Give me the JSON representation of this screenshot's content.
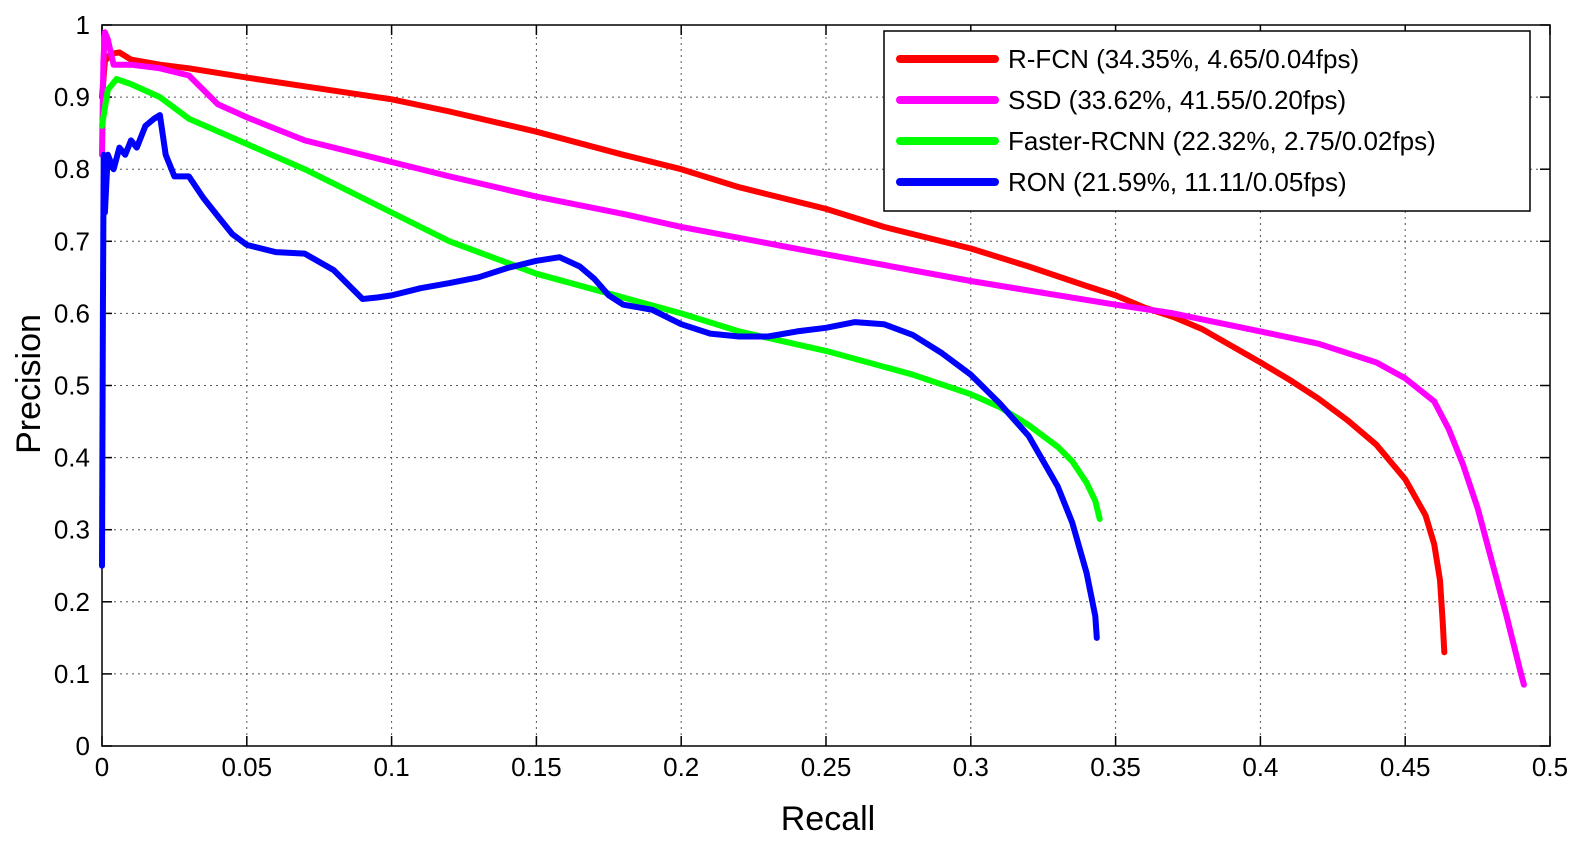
{
  "chart_data": {
    "type": "line",
    "title": "",
    "xlabel": "Recall",
    "ylabel": "Precision",
    "xlim": [
      0,
      0.5
    ],
    "ylim": [
      0,
      1
    ],
    "xticks": [
      0,
      0.05,
      0.1,
      0.15,
      0.2,
      0.25,
      0.3,
      0.35,
      0.4,
      0.45,
      0.5
    ],
    "xtick_labels": [
      "0",
      "0.05",
      "0.1",
      "0.15",
      "0.2",
      "0.25",
      "0.3",
      "0.35",
      "0.4",
      "0.45",
      "0.5"
    ],
    "yticks": [
      0,
      0.1,
      0.2,
      0.3,
      0.4,
      0.5,
      0.6,
      0.7,
      0.8,
      0.9,
      1
    ],
    "ytick_labels": [
      "0",
      "0.1",
      "0.2",
      "0.3",
      "0.4",
      "0.5",
      "0.6",
      "0.7",
      "0.8",
      "0.9",
      "1"
    ],
    "grid": true,
    "legend_position": "top-right",
    "series": [
      {
        "name": "R-FCN (34.35%, 4.65/0.04fps)",
        "color": "#ff0000",
        "points": [
          [
            0,
            0.9
          ],
          [
            0.001,
            0.95
          ],
          [
            0.003,
            0.96
          ],
          [
            0.006,
            0.962
          ],
          [
            0.01,
            0.952
          ],
          [
            0.02,
            0.945
          ],
          [
            0.03,
            0.94
          ],
          [
            0.05,
            0.927
          ],
          [
            0.07,
            0.915
          ],
          [
            0.1,
            0.897
          ],
          [
            0.12,
            0.88
          ],
          [
            0.15,
            0.852
          ],
          [
            0.18,
            0.82
          ],
          [
            0.2,
            0.8
          ],
          [
            0.22,
            0.775
          ],
          [
            0.25,
            0.745
          ],
          [
            0.27,
            0.72
          ],
          [
            0.3,
            0.69
          ],
          [
            0.32,
            0.665
          ],
          [
            0.34,
            0.638
          ],
          [
            0.35,
            0.625
          ],
          [
            0.36,
            0.608
          ],
          [
            0.37,
            0.595
          ],
          [
            0.38,
            0.578
          ],
          [
            0.39,
            0.555
          ],
          [
            0.4,
            0.532
          ],
          [
            0.41,
            0.508
          ],
          [
            0.42,
            0.482
          ],
          [
            0.43,
            0.452
          ],
          [
            0.44,
            0.418
          ],
          [
            0.45,
            0.37
          ],
          [
            0.457,
            0.32
          ],
          [
            0.46,
            0.28
          ],
          [
            0.462,
            0.23
          ],
          [
            0.463,
            0.17
          ],
          [
            0.4635,
            0.13
          ]
        ]
      },
      {
        "name": "SSD (33.62%, 41.55/0.20fps)",
        "color": "#ff00ff",
        "points": [
          [
            0,
            0.82
          ],
          [
            0.0005,
            0.95
          ],
          [
            0.001,
            0.99
          ],
          [
            0.002,
            0.98
          ],
          [
            0.004,
            0.945
          ],
          [
            0.01,
            0.945
          ],
          [
            0.02,
            0.94
          ],
          [
            0.03,
            0.93
          ],
          [
            0.04,
            0.89
          ],
          [
            0.05,
            0.872
          ],
          [
            0.07,
            0.84
          ],
          [
            0.1,
            0.81
          ],
          [
            0.12,
            0.79
          ],
          [
            0.15,
            0.762
          ],
          [
            0.18,
            0.738
          ],
          [
            0.2,
            0.72
          ],
          [
            0.25,
            0.682
          ],
          [
            0.3,
            0.645
          ],
          [
            0.35,
            0.612
          ],
          [
            0.37,
            0.6
          ],
          [
            0.4,
            0.575
          ],
          [
            0.42,
            0.558
          ],
          [
            0.44,
            0.532
          ],
          [
            0.45,
            0.51
          ],
          [
            0.46,
            0.478
          ],
          [
            0.465,
            0.44
          ],
          [
            0.47,
            0.39
          ],
          [
            0.475,
            0.33
          ],
          [
            0.48,
            0.255
          ],
          [
            0.485,
            0.18
          ],
          [
            0.49,
            0.1
          ],
          [
            0.491,
            0.085
          ]
        ]
      },
      {
        "name": "Faster-RCNN (22.32%, 2.75/0.02fps)",
        "color": "#00ff00",
        "points": [
          [
            0,
            0.86
          ],
          [
            0.002,
            0.91
          ],
          [
            0.005,
            0.925
          ],
          [
            0.01,
            0.918
          ],
          [
            0.02,
            0.9
          ],
          [
            0.03,
            0.87
          ],
          [
            0.05,
            0.835
          ],
          [
            0.07,
            0.8
          ],
          [
            0.08,
            0.78
          ],
          [
            0.1,
            0.74
          ],
          [
            0.12,
            0.7
          ],
          [
            0.15,
            0.655
          ],
          [
            0.18,
            0.622
          ],
          [
            0.2,
            0.6
          ],
          [
            0.22,
            0.575
          ],
          [
            0.25,
            0.548
          ],
          [
            0.28,
            0.515
          ],
          [
            0.3,
            0.488
          ],
          [
            0.31,
            0.47
          ],
          [
            0.32,
            0.445
          ],
          [
            0.33,
            0.415
          ],
          [
            0.335,
            0.395
          ],
          [
            0.34,
            0.365
          ],
          [
            0.343,
            0.34
          ],
          [
            0.3445,
            0.315
          ]
        ]
      },
      {
        "name": "RON (21.59%, 11.11/0.05fps)",
        "color": "#0000ff",
        "points": [
          [
            0,
            0.25
          ],
          [
            0.0003,
            0.6
          ],
          [
            0.0006,
            0.82
          ],
          [
            0.001,
            0.74
          ],
          [
            0.002,
            0.82
          ],
          [
            0.004,
            0.8
          ],
          [
            0.006,
            0.83
          ],
          [
            0.008,
            0.82
          ],
          [
            0.01,
            0.84
          ],
          [
            0.012,
            0.83
          ],
          [
            0.015,
            0.86
          ],
          [
            0.018,
            0.87
          ],
          [
            0.02,
            0.875
          ],
          [
            0.022,
            0.82
          ],
          [
            0.025,
            0.79
          ],
          [
            0.03,
            0.79
          ],
          [
            0.035,
            0.76
          ],
          [
            0.04,
            0.735
          ],
          [
            0.045,
            0.71
          ],
          [
            0.05,
            0.695
          ],
          [
            0.06,
            0.685
          ],
          [
            0.07,
            0.683
          ],
          [
            0.08,
            0.66
          ],
          [
            0.085,
            0.64
          ],
          [
            0.09,
            0.62
          ],
          [
            0.095,
            0.622
          ],
          [
            0.1,
            0.625
          ],
          [
            0.105,
            0.63
          ],
          [
            0.11,
            0.635
          ],
          [
            0.12,
            0.642
          ],
          [
            0.13,
            0.65
          ],
          [
            0.14,
            0.663
          ],
          [
            0.15,
            0.673
          ],
          [
            0.158,
            0.678
          ],
          [
            0.165,
            0.665
          ],
          [
            0.17,
            0.648
          ],
          [
            0.175,
            0.625
          ],
          [
            0.18,
            0.612
          ],
          [
            0.19,
            0.605
          ],
          [
            0.2,
            0.585
          ],
          [
            0.21,
            0.572
          ],
          [
            0.22,
            0.568
          ],
          [
            0.23,
            0.568
          ],
          [
            0.24,
            0.575
          ],
          [
            0.25,
            0.58
          ],
          [
            0.26,
            0.588
          ],
          [
            0.27,
            0.585
          ],
          [
            0.28,
            0.57
          ],
          [
            0.29,
            0.545
          ],
          [
            0.3,
            0.515
          ],
          [
            0.31,
            0.475
          ],
          [
            0.32,
            0.43
          ],
          [
            0.33,
            0.36
          ],
          [
            0.335,
            0.31
          ],
          [
            0.34,
            0.24
          ],
          [
            0.343,
            0.18
          ],
          [
            0.3435,
            0.15
          ]
        ]
      }
    ]
  }
}
